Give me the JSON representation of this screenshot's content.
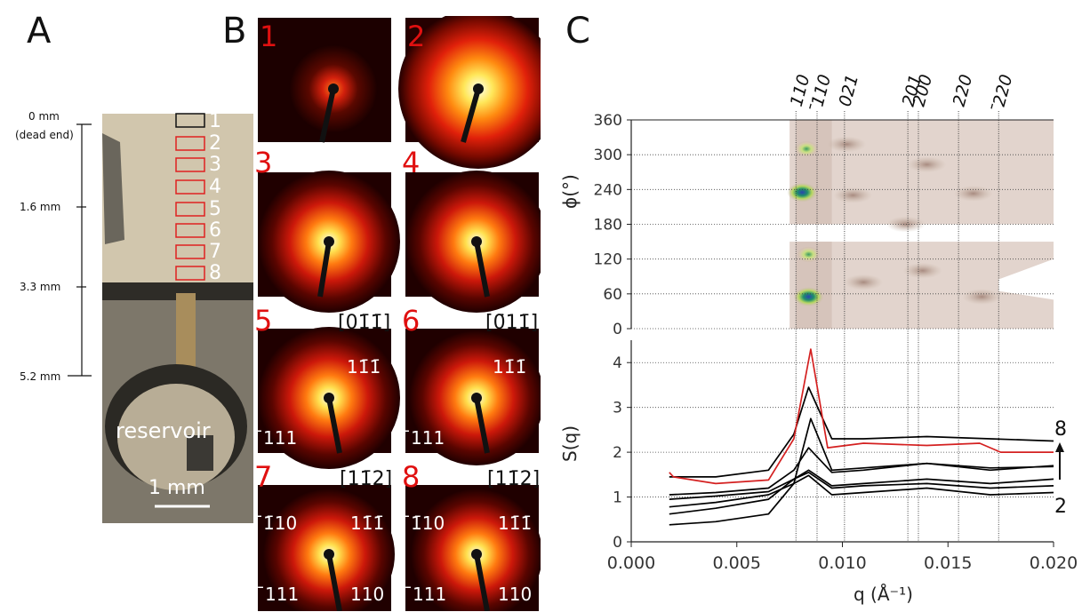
{
  "panels": {
    "a": "A",
    "b": "B",
    "c": "C"
  },
  "panel_a": {
    "scale_labels": [
      "0 mm",
      "(dead end)",
      "1.6 mm",
      "3.3 mm",
      "5.2 mm"
    ],
    "box_labels": [
      "1",
      "2",
      "3",
      "4",
      "5",
      "6",
      "7",
      "8"
    ],
    "reservoir_label": "reservoir",
    "scalebar_label": "1 mm"
  },
  "panel_b": {
    "patterns": [
      {
        "num": "1",
        "zone": "",
        "labels": []
      },
      {
        "num": "2",
        "zone": "",
        "labels": []
      },
      {
        "num": "3",
        "zone": "",
        "labels": []
      },
      {
        "num": "4",
        "zone": "",
        "labels": []
      },
      {
        "num": "5",
        "zone": "[01̄1̄]",
        "labels": [
          "11̄1̄",
          "̄111"
        ]
      },
      {
        "num": "6",
        "zone": "[0̄11̄]",
        "labels": [
          "11̄1̄",
          "̄111"
        ]
      },
      {
        "num": "7",
        "zone": "[11̄2]",
        "labels": [
          "̄1̄10",
          "11̄1̄",
          "̄111",
          "110"
        ]
      },
      {
        "num": "8",
        "zone": "[11̄2]",
        "labels": [
          "̄1̄10",
          "11̄1̄",
          "̄111",
          "110"
        ]
      }
    ]
  },
  "panel_c": {
    "peak_labels": [
      "110",
      "̄110",
      "021",
      "201",
      "200",
      "220",
      "̄220"
    ],
    "peak_q": [
      0.0078,
      0.0088,
      0.0101,
      0.0131,
      0.0136,
      0.0155,
      0.0174
    ],
    "heatmap": {
      "ylabel": "ϕ(°)",
      "yticks": [
        "360",
        "300",
        "240",
        "180",
        "120",
        "60",
        "0"
      ],
      "spots": [
        {
          "q": 0.0083,
          "phi": 310,
          "strength": "medium"
        },
        {
          "q": 0.0081,
          "phi": 235,
          "strength": "strong"
        },
        {
          "q": 0.0084,
          "phi": 128,
          "strength": "medium"
        },
        {
          "q": 0.0084,
          "phi": 55,
          "strength": "strong"
        }
      ]
    },
    "chart_data": {
      "type": "line",
      "xlabel": "q (Å⁻¹)",
      "ylabel": "S(q)",
      "xlim": [
        0.0,
        0.02
      ],
      "ylim": [
        0,
        4.5
      ],
      "xticks": [
        "0.000",
        "0.005",
        "0.010",
        "0.015",
        "0.020"
      ],
      "yticks": [
        "4",
        "3",
        "2",
        "1",
        "0"
      ],
      "grid": true,
      "annotation_top": "8",
      "annotation_bottom": "2",
      "series": [
        {
          "color": "#000000",
          "x": [
            0.0018,
            0.004,
            0.0065,
            0.0077,
            0.0085,
            0.0095,
            0.011,
            0.014,
            0.017,
            0.02
          ],
          "y": [
            0.38,
            0.45,
            0.62,
            1.3,
            2.75,
            1.6,
            1.65,
            1.75,
            1.65,
            1.68
          ]
        },
        {
          "color": "#000000",
          "x": [
            0.0018,
            0.004,
            0.0065,
            0.0077,
            0.0084,
            0.0095,
            0.011,
            0.014,
            0.017,
            0.02
          ],
          "y": [
            0.62,
            0.75,
            0.95,
            1.4,
            1.55,
            1.2,
            1.25,
            1.3,
            1.2,
            1.25
          ]
        },
        {
          "color": "#000000",
          "x": [
            0.0018,
            0.004,
            0.0065,
            0.0077,
            0.0084,
            0.0095,
            0.011,
            0.014,
            0.017,
            0.02
          ],
          "y": [
            0.78,
            0.88,
            1.05,
            1.3,
            1.48,
            1.05,
            1.1,
            1.2,
            1.05,
            1.1
          ]
        },
        {
          "color": "#000000",
          "x": [
            0.0018,
            0.004,
            0.0065,
            0.0077,
            0.0084,
            0.0095,
            0.011,
            0.014,
            0.017,
            0.02
          ],
          "y": [
            0.95,
            1.02,
            1.12,
            1.4,
            1.6,
            1.25,
            1.3,
            1.4,
            1.3,
            1.4
          ]
        },
        {
          "color": "#000000",
          "x": [
            0.0018,
            0.004,
            0.0065,
            0.0077,
            0.0084,
            0.0095,
            0.011,
            0.014,
            0.017,
            0.02
          ],
          "y": [
            1.05,
            1.1,
            1.2,
            1.6,
            2.1,
            1.55,
            1.6,
            1.75,
            1.6,
            1.7
          ]
        },
        {
          "color": "#000000",
          "x": [
            0.0018,
            0.004,
            0.0065,
            0.0077,
            0.0084,
            0.0095,
            0.011,
            0.014,
            0.017,
            0.02
          ],
          "y": [
            1.45,
            1.45,
            1.6,
            2.4,
            3.45,
            2.3,
            2.3,
            2.35,
            2.3,
            2.25
          ]
        },
        {
          "color": "#d42020",
          "x": [
            0.0018,
            0.002,
            0.004,
            0.0065,
            0.0077,
            0.0085,
            0.0093,
            0.011,
            0.014,
            0.0165,
            0.0175,
            0.02
          ],
          "y": [
            1.55,
            1.45,
            1.3,
            1.38,
            2.3,
            4.3,
            2.1,
            2.2,
            2.15,
            2.2,
            2.0,
            2.0
          ]
        }
      ]
    }
  }
}
